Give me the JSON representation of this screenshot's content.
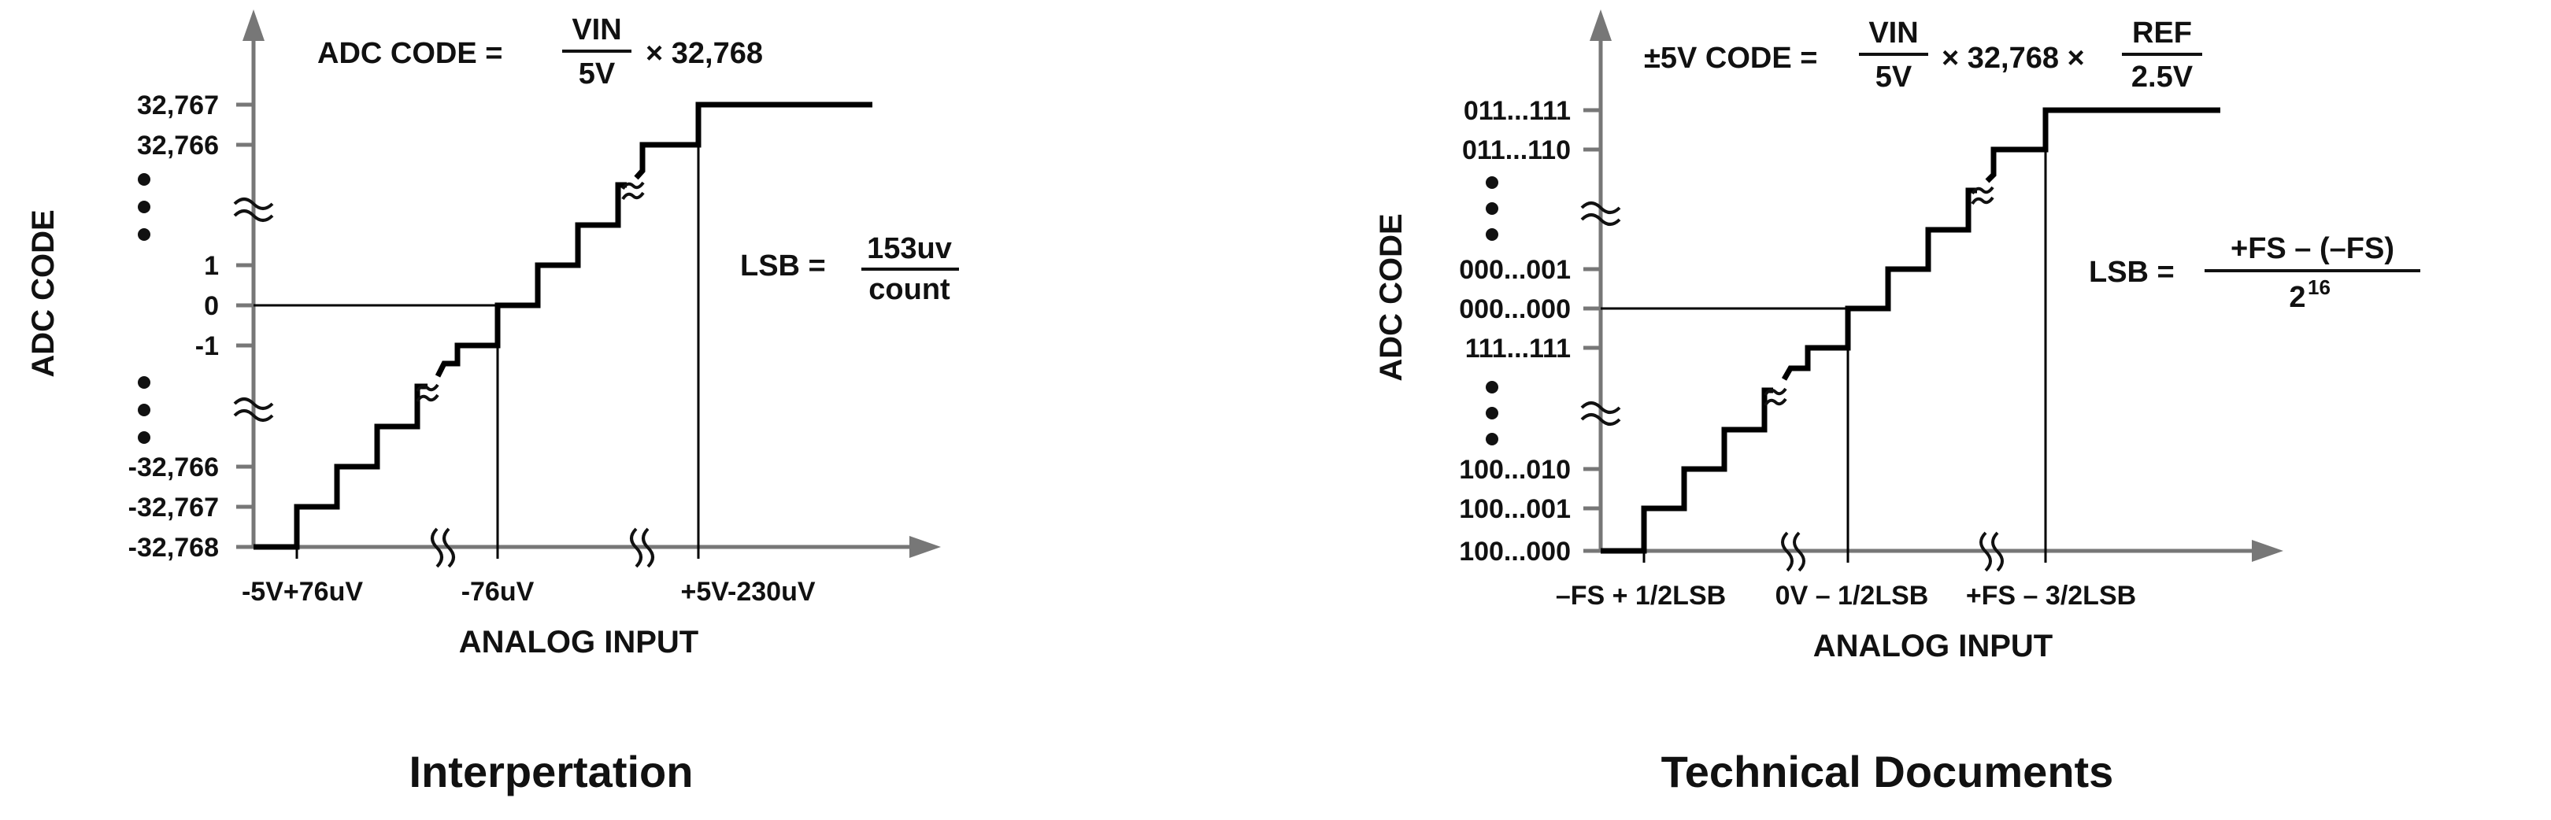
{
  "left": {
    "formula": {
      "lhs": "ADC  CODE =",
      "num": "VIN",
      "den": "5V",
      "tail": "× 32,768"
    },
    "y_axis_label": "ADC CODE",
    "x_axis_label": "ANALOG INPUT",
    "y_ticks": [
      "32,767",
      "32,766",
      "1",
      "0",
      "-1",
      "-32,766",
      "-32,767",
      "-32,768"
    ],
    "x_ticks": [
      "-5V+76uV",
      "-76uV",
      "+5V-230uV"
    ],
    "lsb": {
      "lhs": "LSB =",
      "num": "153uv",
      "den": "count"
    },
    "caption": "Interpertation"
  },
  "right": {
    "formula": {
      "lhs": "±5V CODE =",
      "num1": "VIN",
      "den1": "5V",
      "mid": "× 32,768 ×",
      "num2": "REF",
      "den2": "2.5V"
    },
    "y_axis_label": "ADC CODE",
    "x_axis_label": "ANALOG INPUT",
    "y_ticks": [
      "011...111",
      "011...110",
      "000...001",
      "000...000",
      "111...111",
      "100...010",
      "100...001",
      "100...000"
    ],
    "x_ticks": [
      "–FS + 1/2LSB",
      "0V – 1/2LSB",
      "+FS – 3/2LSB"
    ],
    "lsb": {
      "lhs": "LSB =",
      "num": "+FS – (–FS)",
      "den_base": "2",
      "den_exp": "16"
    },
    "caption": "Technical Documents"
  }
}
